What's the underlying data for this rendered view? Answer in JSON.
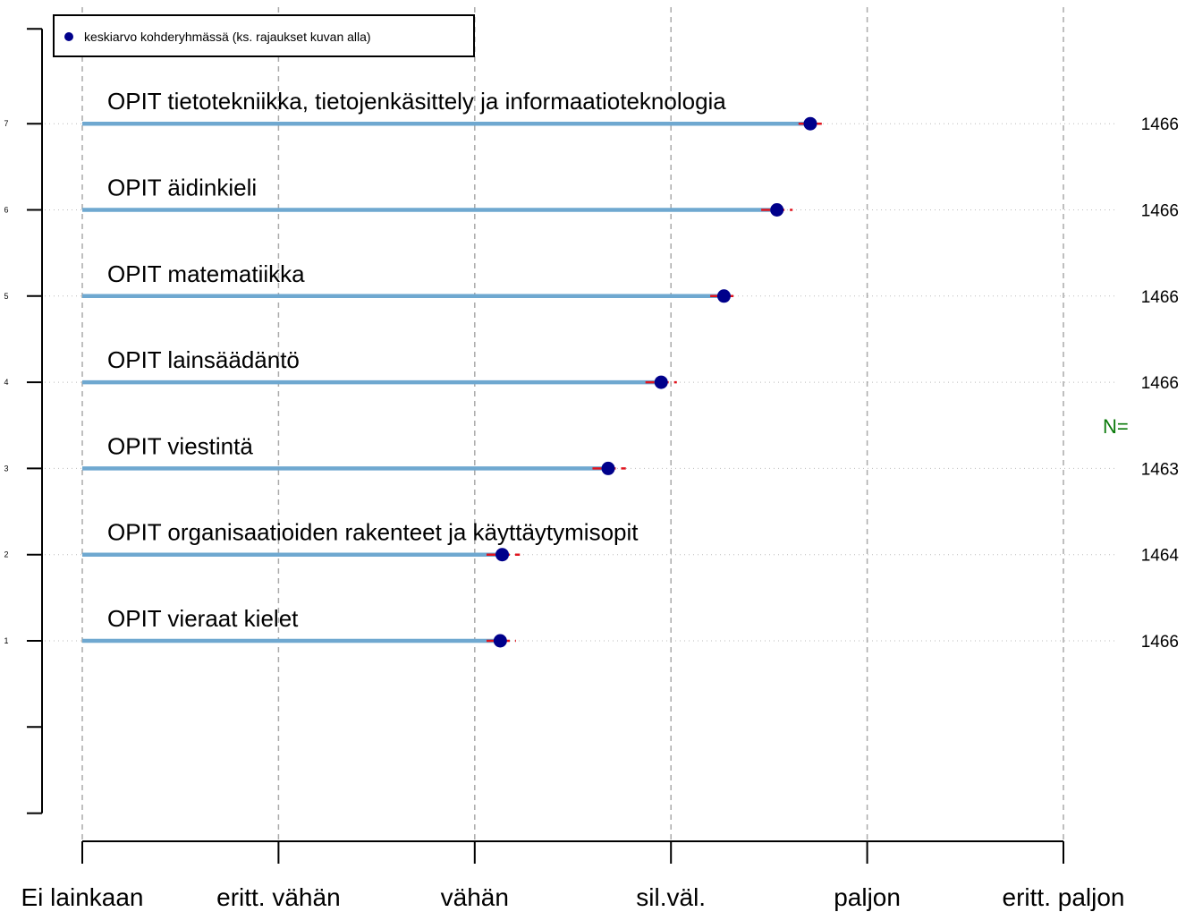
{
  "chart_data": {
    "type": "dot",
    "legend": {
      "label": "keskiarvo kohderyhmässä (ks. rajaukset kuvan alla)",
      "position": "top-left"
    },
    "x_ticks": [
      "Ei lainkaan",
      "eritt. vähän",
      "vähän",
      "sil.väl.",
      "paljon",
      "eritt. paljon"
    ],
    "xlim": [
      1,
      6
    ],
    "y_ticks": [
      "1",
      "2",
      "3",
      "4",
      "5",
      "6",
      "7"
    ],
    "grid": true,
    "n_title": "N=",
    "items": [
      {
        "y": 7,
        "label": "OPIT tietotekniikka, tietojenkäsittely ja informaatioteknologia",
        "mean": 4.71,
        "ci": [
          4.65,
          4.77
        ],
        "n": "1466"
      },
      {
        "y": 6,
        "label": "OPIT äidinkieli",
        "mean": 4.54,
        "ci": [
          4.46,
          4.62
        ],
        "n": "1466"
      },
      {
        "y": 5,
        "label": "OPIT matematiikka",
        "mean": 4.27,
        "ci": [
          4.2,
          4.34
        ],
        "n": "1466"
      },
      {
        "y": 4,
        "label": "OPIT lainsäädäntö",
        "mean": 3.95,
        "ci": [
          3.87,
          4.03
        ],
        "n": "1466"
      },
      {
        "y": 3,
        "label": "OPIT viestintä",
        "mean": 3.68,
        "ci": [
          3.6,
          3.77
        ],
        "n": "1463"
      },
      {
        "y": 2,
        "label": "OPIT organisaatioiden rakenteet ja käyttäytymisopit",
        "mean": 3.14,
        "ci": [
          3.06,
          3.23
        ],
        "n": "1464"
      },
      {
        "y": 1,
        "label": "OPIT vieraat kielet",
        "mean": 3.13,
        "ci": [
          3.06,
          3.21
        ],
        "n": "1466"
      }
    ],
    "colors": {
      "bar": "#6fa8d0",
      "point": "#00008b",
      "ci": "#e0141e",
      "grid": "#aaaaaa",
      "n_title": "#0a7a0a"
    }
  }
}
